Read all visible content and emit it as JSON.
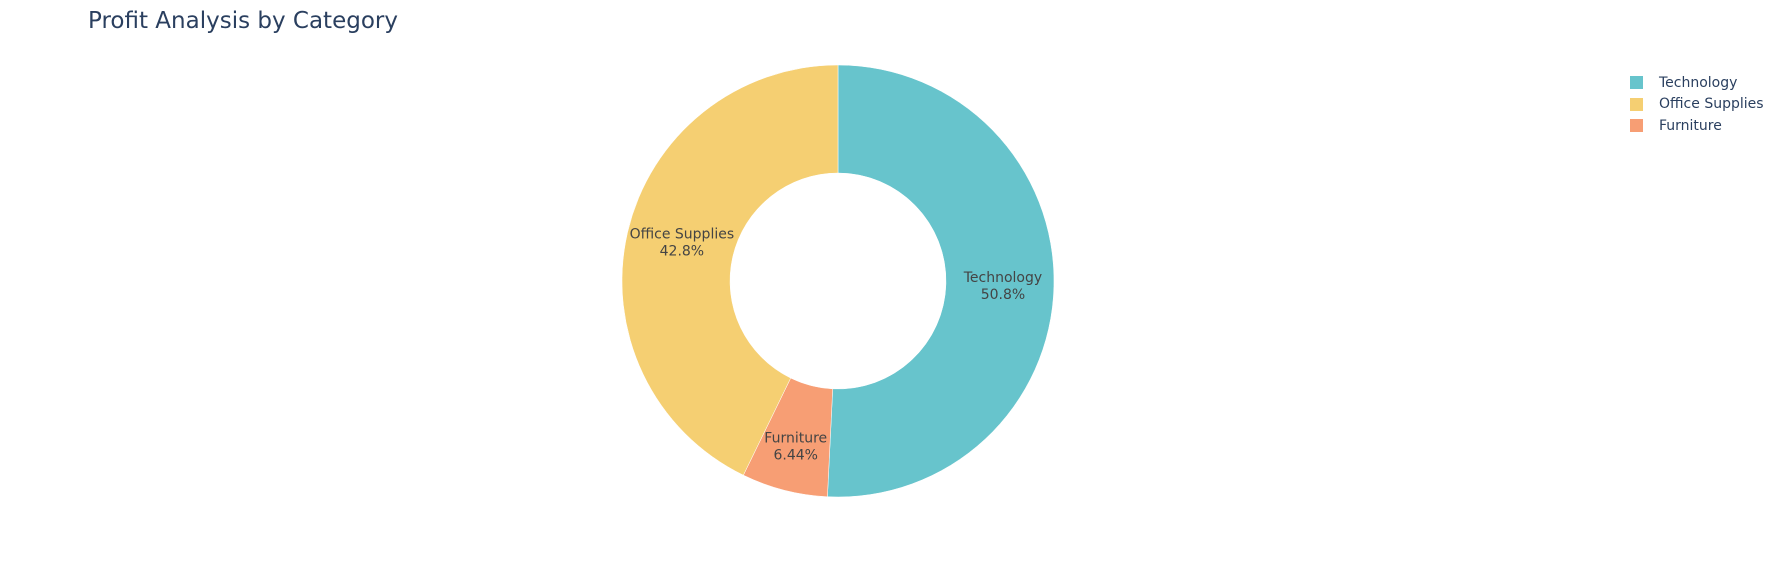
{
  "chart_data": {
    "type": "pie",
    "hole": 0.5,
    "title": "Profit Analysis by Category",
    "slices": [
      {
        "label": "Technology",
        "value": 50.8,
        "percent_text": "50.8%",
        "color": "#67c4cc"
      },
      {
        "label": "Furniture",
        "value": 6.44,
        "percent_text": "6.44%",
        "color": "#f79e74"
      },
      {
        "label": "Office Supplies",
        "value": 42.8,
        "percent_text": "42.8%",
        "color": "#f5cf72"
      }
    ],
    "legend": {
      "position": "top-right",
      "items": [
        {
          "label": "Technology",
          "color": "#67c4cc"
        },
        {
          "label": "Office Supplies",
          "color": "#f5cf72"
        },
        {
          "label": "Furniture",
          "color": "#f79e74"
        }
      ]
    }
  }
}
